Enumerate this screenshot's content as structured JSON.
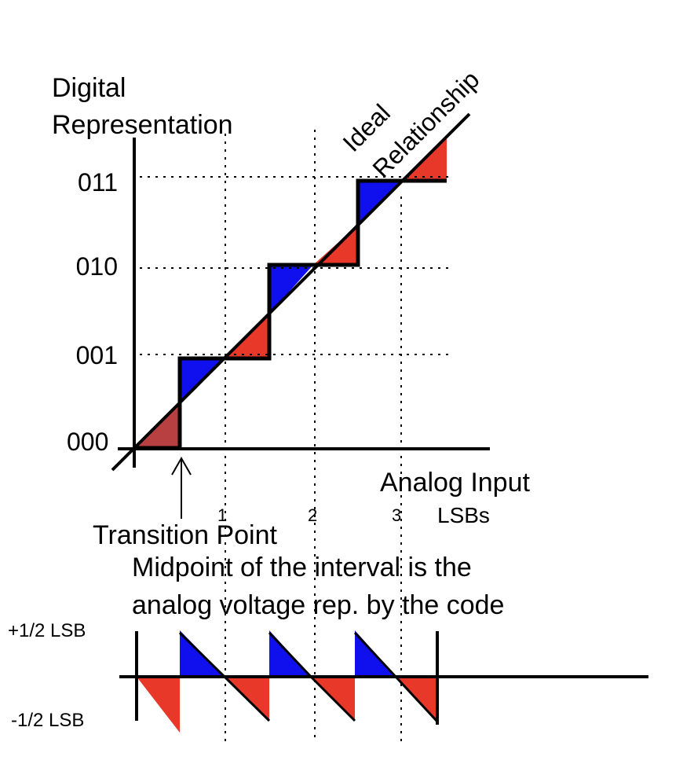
{
  "labels": {
    "y_axis_line1": "Digital",
    "y_axis_line2": "Representation",
    "ideal_line1": "Ideal",
    "ideal_line2": "Relationship",
    "x_axis": "Analog Input",
    "units": "LSBs",
    "transition": "Transition Point",
    "note_line1": "Midpoint of the interval is the",
    "note_line2": "analog voltage rep. by the code",
    "error_plus": "+1/2 LSB",
    "error_minus": "-1/2 LSB"
  },
  "codes": [
    "000",
    "001",
    "010",
    "011"
  ],
  "lsb_ticks": [
    "1",
    "2",
    "3"
  ],
  "colors": {
    "positive_error": "#1010ee",
    "negative_error": "#e8382a",
    "first_step": "#b84040",
    "ink": "#000000"
  }
}
